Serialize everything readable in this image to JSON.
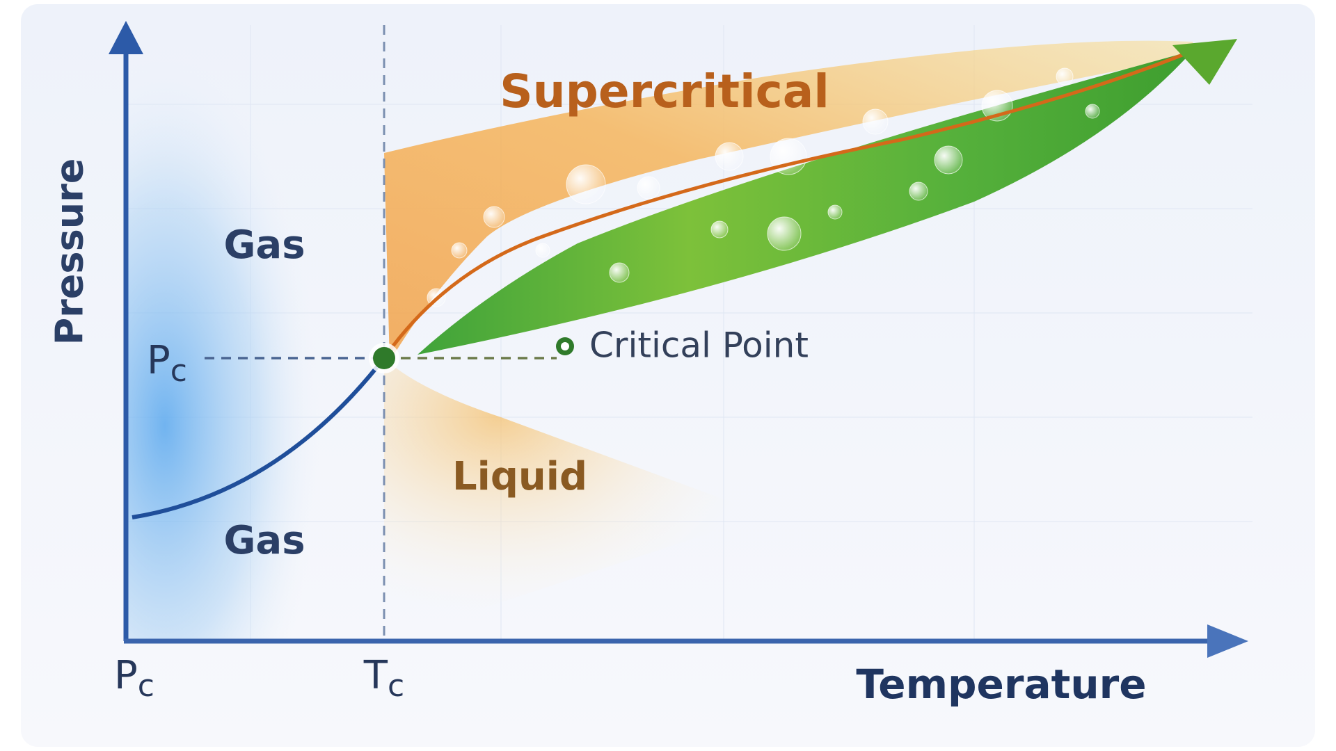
{
  "axes": {
    "y_label": "Pressure",
    "x_label": "Temperature"
  },
  "ticks": {
    "pressure_critical": {
      "symbol": "P",
      "subscript": "c"
    },
    "origin": {
      "symbol": "P",
      "subscript": "c"
    },
    "temperature_critical": {
      "symbol": "T",
      "subscript": "c"
    }
  },
  "regions": {
    "supercritical": "Supercritical",
    "gas_upper": "Gas",
    "gas_lower": "Gas",
    "liquid": "Liquid"
  },
  "annotations": {
    "critical_point": "Critical Point"
  }
}
